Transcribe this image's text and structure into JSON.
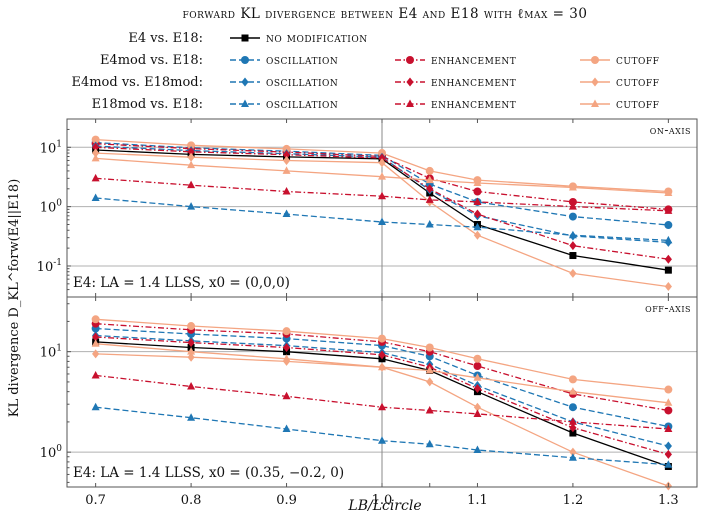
{
  "title": "forward KL divergence between E4 and E18 with ℓmax = 30",
  "legend": {
    "rows": [
      {
        "label": "E4 vs. E18:",
        "entries": [
          "no modification"
        ]
      },
      {
        "label": "E4mod vs. E18:",
        "entries": [
          "oscillation",
          "enhancement",
          "cutoff"
        ]
      },
      {
        "label": "E4mod vs. E18mod:",
        "entries": [
          "oscillation",
          "enhancement",
          "cutoff"
        ]
      },
      {
        "label": "E18mod vs. E18:",
        "entries": [
          "oscillation",
          "enhancement",
          "cutoff"
        ]
      }
    ]
  },
  "colors": {
    "no_modification": "#000000",
    "oscillation": "#1f77b4",
    "enhancement": "#c8102e",
    "cutoff": "#f4a582",
    "grid": "#b0b0b0",
    "axis": "#555555"
  },
  "chart_data": [
    {
      "type": "line",
      "panel_label": "on-axis",
      "annotation": "E4: LA = 1.4 LLSS, x0 = (0,0,0)",
      "xlabel": "LB/Lcircle",
      "ylabel": "KL divergence D_KL^forw(E4||E18)",
      "yscale": "log",
      "xlim": [
        0.67,
        1.33
      ],
      "ylim": [
        0.03,
        30
      ],
      "x": [
        0.7,
        0.8,
        0.9,
        1.0,
        1.05,
        1.1,
        1.2,
        1.3
      ],
      "series": [
        {
          "name": "no modification",
          "group": "E4 vs. E18",
          "values": [
            9.0,
            7.6,
            6.9,
            6.4,
            1.7,
            0.5,
            0.15,
            0.085
          ]
        },
        {
          "name": "oscillation",
          "group": "E4mod vs. E18",
          "values": [
            12.0,
            9.8,
            8.6,
            7.3,
            2.4,
            1.2,
            0.68,
            0.49
          ]
        },
        {
          "name": "enhancement",
          "group": "E4mod vs. E18",
          "values": [
            11.5,
            9.5,
            8.3,
            7.0,
            3.0,
            1.8,
            1.2,
            0.9
          ]
        },
        {
          "name": "cutoff",
          "group": "E4mod vs. E18",
          "values": [
            13.5,
            10.8,
            9.4,
            8.0,
            4.0,
            2.8,
            2.2,
            1.8
          ]
        },
        {
          "name": "oscillation",
          "group": "E4mod vs. E18mod",
          "values": [
            10.5,
            8.8,
            7.8,
            6.8,
            1.9,
            0.7,
            0.32,
            0.25
          ]
        },
        {
          "name": "enhancement",
          "group": "E4mod vs. E18mod",
          "values": [
            10.0,
            8.4,
            7.5,
            6.6,
            2.0,
            0.75,
            0.22,
            0.13
          ]
        },
        {
          "name": "cutoff",
          "group": "E4mod vs. E18mod",
          "values": [
            8.0,
            6.8,
            6.0,
            5.5,
            1.2,
            0.33,
            0.075,
            0.045
          ]
        },
        {
          "name": "oscillation",
          "group": "E18mod vs. E18",
          "values": [
            1.4,
            1.0,
            0.75,
            0.55,
            0.5,
            0.45,
            0.33,
            0.27
          ]
        },
        {
          "name": "enhancement",
          "group": "E18mod vs. E18",
          "values": [
            3.0,
            2.3,
            1.8,
            1.5,
            1.3,
            1.2,
            1.0,
            0.85
          ]
        },
        {
          "name": "cutoff",
          "group": "E18mod vs. E18",
          "values": [
            6.5,
            5.0,
            4.0,
            3.2,
            2.8,
            2.5,
            2.1,
            1.7
          ]
        }
      ]
    },
    {
      "type": "line",
      "panel_label": "off-axis",
      "annotation": "E4: LA = 1.4 LLSS, x0 = (0.35, −0.2, 0)",
      "xlabel": "LB/Lcircle",
      "ylabel": "KL divergence D_KL^forw(E4||E18)",
      "yscale": "log",
      "xlim": [
        0.67,
        1.33
      ],
      "ylim": [
        0.45,
        35
      ],
      "x": [
        0.7,
        0.8,
        0.9,
        1.0,
        1.05,
        1.1,
        1.2,
        1.3
      ],
      "series": [
        {
          "name": "no modification",
          "group": "E4 vs. E18",
          "values": [
            12.5,
            11.0,
            10.0,
            8.5,
            6.5,
            4.0,
            1.55,
            0.72
          ]
        },
        {
          "name": "oscillation",
          "group": "E4mod vs. E18",
          "values": [
            17.0,
            15.0,
            13.5,
            11.5,
            9.0,
            5.8,
            2.8,
            1.8
          ]
        },
        {
          "name": "enhancement",
          "group": "E4mod vs. E18",
          "values": [
            19.0,
            16.5,
            15.0,
            12.5,
            10.0,
            7.2,
            3.8,
            2.6
          ]
        },
        {
          "name": "cutoff",
          "group": "E4mod vs. E18",
          "values": [
            21.0,
            18.0,
            16.0,
            13.5,
            11.0,
            8.5,
            5.3,
            4.2
          ]
        },
        {
          "name": "oscillation",
          "group": "E4mod vs. E18mod",
          "values": [
            14.5,
            12.8,
            11.5,
            9.8,
            7.5,
            4.6,
            2.0,
            1.15
          ]
        },
        {
          "name": "enhancement",
          "group": "E4mod vs. E18mod",
          "values": [
            14.0,
            12.3,
            11.0,
            9.3,
            7.0,
            4.3,
            1.75,
            0.95
          ]
        },
        {
          "name": "cutoff",
          "group": "E4mod vs. E18mod",
          "values": [
            9.5,
            8.8,
            8.0,
            7.0,
            5.0,
            2.8,
            1.0,
            0.46
          ]
        },
        {
          "name": "oscillation",
          "group": "E18mod vs. E18",
          "values": [
            2.8,
            2.2,
            1.7,
            1.3,
            1.2,
            1.05,
            0.88,
            0.75
          ]
        },
        {
          "name": "enhancement",
          "group": "E18mod vs. E18",
          "values": [
            5.8,
            4.5,
            3.6,
            2.8,
            2.6,
            2.4,
            2.0,
            1.7
          ]
        },
        {
          "name": "cutoff",
          "group": "E18mod vs. E18",
          "values": [
            12.0,
            10.0,
            8.5,
            7.0,
            6.5,
            5.5,
            4.0,
            3.1
          ]
        }
      ]
    }
  ]
}
